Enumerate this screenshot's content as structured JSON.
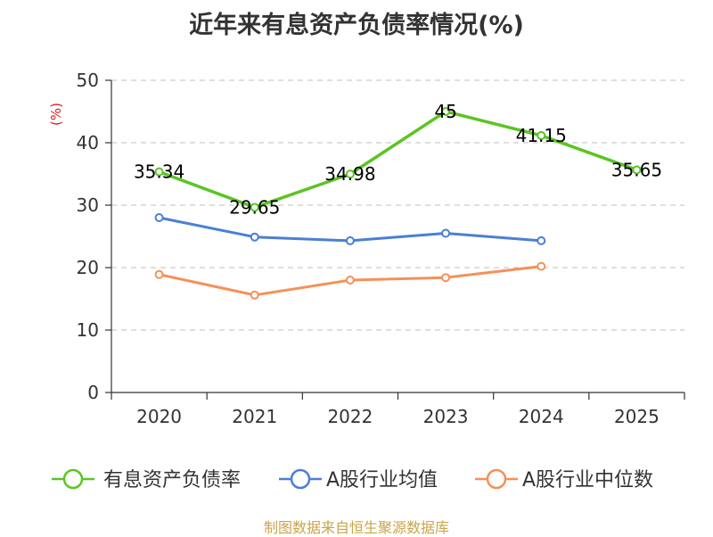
{
  "chart_data": {
    "type": "line",
    "title": "近年来有息资产负债率情况(%)",
    "ylabel": "(%)",
    "ylim": [
      0,
      50
    ],
    "yticks": [
      0,
      10,
      20,
      30,
      40,
      50
    ],
    "categories": [
      "2020",
      "2021",
      "2022",
      "2023",
      "2024",
      "2025"
    ],
    "grid": true,
    "legend_position": "bottom",
    "series": [
      {
        "name": "有息资产负债率",
        "color": "#5cc424",
        "values": [
          35.34,
          29.65,
          34.98,
          45,
          41.15,
          35.65
        ],
        "data_labels": [
          "35.34",
          "29.65",
          "34.98",
          "45",
          "41.15",
          "35.65"
        ]
      },
      {
        "name": "A股行业均值",
        "color": "#4a7fd6",
        "values": [
          28.0,
          24.9,
          24.3,
          25.5,
          24.3,
          null
        ]
      },
      {
        "name": "A股行业中位数",
        "color": "#f59058",
        "values": [
          18.9,
          15.6,
          18.0,
          18.4,
          20.2,
          null
        ]
      }
    ],
    "unit_color": "#d92020"
  },
  "footer": {
    "source": "制图数据来自恒生聚源数据库"
  }
}
